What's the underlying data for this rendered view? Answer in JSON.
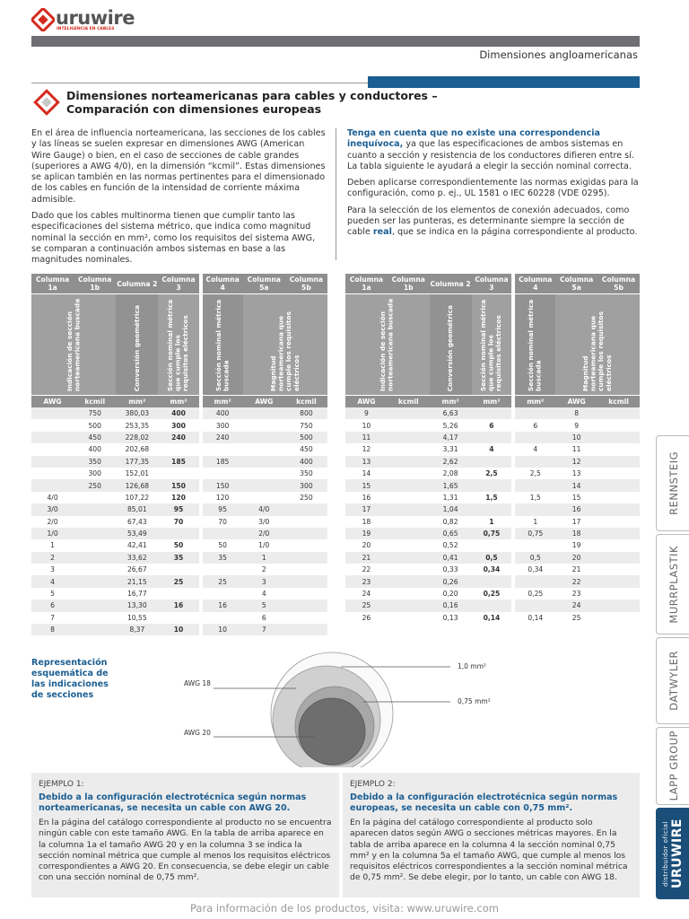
{
  "header": {
    "logo": "uruwire",
    "tagline": "INTELIGENCIA EN CABLES",
    "section": "Dimensiones angloamericanas"
  },
  "title": [
    "Dimensiones norteamericanas para cables y conductores –",
    "Comparación con dimensiones europeas"
  ],
  "intro": {
    "left": [
      "En el área de influencia norteamericana, las secciones de los cables y las líneas se suelen expresar en dimensiones AWG (American Wire Gauge) o bien, en el caso de secciones de cable grandes (superiores a AWG 4/0), en la dimensión “kcmil”. Estas dimensiones se aplican también en las normas pertinentes para el dimensionado de los cables en función de la intensidad de corriente máxima admisible.",
      "Dado que los cables multinorma tienen que cumplir tanto las especificaciones del sistema métrico, que indica como magnitud nominal la sección en mm², como los requisitos del sistema AWG, se comparan a continuación ambos sistemas en base a las magnitudes nominales."
    ],
    "right": {
      "p1_lead": "Tenga en cuenta que no existe una correspondencia inequívoca,",
      "p1_text": "ya que las especificaciones de ambos sistemas en cuanto a sección y resistencia de los conductores difieren entre sí. La tabla siguiente le ayudará a elegir la sección nominal correcta.",
      "p2": "Deben aplicarse correspondientemente las normas exigidas para la configuración, como p. ej., UL 1581 o IEC 60228 (VDE 0295).",
      "p3_text": "Para la selección de los elementos de conexión adecuados, como pueden ser las punteras, es determinante siempre la sección de cable",
      "p3_emphasis": "real",
      "p3_tail": ", que se indica en la página correspondiente al producto."
    }
  },
  "tables": [
    {
      "columns": [
        "Columna 1a",
        "Columna 1b",
        "Columna 2",
        "Columna 3",
        "Columna 4",
        "Columna 5a",
        "Columna 5b"
      ],
      "descriptions": [
        "Indicación de sección norteamericana buscada",
        "Conversión geométrica",
        "Sección nominal métrica que cumple los requisitos eléctricos",
        "Sección nominal métrica buscada",
        "Magnitud norteamericana que cumple los requisitos eléctricos"
      ],
      "units": [
        "AWG",
        "kcmil",
        "mm²",
        "mm²",
        "mm²",
        "AWG",
        "kcmil"
      ],
      "rows": [
        [
          null,
          "750",
          "380,03",
          "400",
          "400",
          null,
          "800"
        ],
        [
          null,
          "500",
          "253,35",
          "300",
          "300",
          null,
          "750"
        ],
        [
          null,
          "450",
          "228,02",
          "240",
          "240",
          null,
          "500"
        ],
        [
          null,
          "400",
          "202,68",
          null,
          null,
          null,
          "450"
        ],
        [
          null,
          "350",
          "177,35",
          "185",
          "185",
          null,
          "400"
        ],
        [
          null,
          "300",
          "152,01",
          null,
          null,
          null,
          "350"
        ],
        [
          null,
          "250",
          "126,68",
          "150",
          "150",
          null,
          "300"
        ],
        [
          "4/0",
          null,
          "107,22",
          "120",
          "120",
          null,
          "250"
        ],
        [
          "3/0",
          null,
          "85,01",
          "95",
          "95",
          "4/0",
          null
        ],
        [
          "2/0",
          null,
          "67,43",
          "70",
          "70",
          "3/0",
          null
        ],
        [
          "1/0",
          null,
          "53,49",
          null,
          null,
          "2/0",
          null
        ],
        [
          "1",
          null,
          "42,41",
          "50",
          "50",
          "1/0",
          null
        ],
        [
          "2",
          null,
          "33,62",
          "35",
          "35",
          "1",
          null
        ],
        [
          "3",
          null,
          "26,67",
          null,
          null,
          "2",
          null
        ],
        [
          "4",
          null,
          "21,15",
          "25",
          "25",
          "3",
          null
        ],
        [
          "5",
          null,
          "16,77",
          null,
          null,
          "4",
          null
        ],
        [
          "6",
          null,
          "13,30",
          "16",
          "16",
          "5",
          null
        ],
        [
          "7",
          null,
          "10,55",
          null,
          null,
          "6",
          null
        ],
        [
          "8",
          null,
          "8,37",
          "10",
          "10",
          "7",
          null
        ]
      ]
    },
    {
      "columns": [
        "Columna 1a",
        "Columna 1b",
        "Columna 2",
        "Columna 3",
        "Columna 4",
        "Columna 5a",
        "Columna 5b"
      ],
      "descriptions": [
        "Indicación de sección norteamericana buscada",
        "Conversión geométrica",
        "Sección nominal métrica que cumple los requisitos eléctricos",
        "Sección nominal métrica buscada",
        "Magnitud norteamericana que cumple los requisitos eléctricos"
      ],
      "units": [
        "AWG",
        "kcmil",
        "mm²",
        "mm²",
        "mm²",
        "AWG",
        "kcmil"
      ],
      "rows": [
        [
          "9",
          null,
          "6,63",
          null,
          null,
          "8",
          null
        ],
        [
          "10",
          null,
          "5,26",
          "6",
          "6",
          "9",
          null
        ],
        [
          "11",
          null,
          "4,17",
          null,
          null,
          "10",
          null
        ],
        [
          "12",
          null,
          "3,31",
          "4",
          "4",
          "11",
          null
        ],
        [
          "13",
          null,
          "2,62",
          null,
          null,
          "12",
          null
        ],
        [
          "14",
          null,
          "2,08",
          "2,5",
          "2,5",
          "13",
          null
        ],
        [
          "15",
          null,
          "1,65",
          null,
          null,
          "14",
          null
        ],
        [
          "16",
          null,
          "1,31",
          "1,5",
          "1,5",
          "15",
          null
        ],
        [
          "17",
          null,
          "1,04",
          null,
          null,
          "16",
          null
        ],
        [
          "18",
          null,
          "0,82",
          "1",
          "1",
          "17",
          null
        ],
        [
          "19",
          null,
          "0,65",
          "0,75",
          "0,75",
          "18",
          null
        ],
        [
          "20",
          null,
          "0,52",
          null,
          null,
          "19",
          null
        ],
        [
          "21",
          null,
          "0,41",
          "0,5",
          "0,5",
          "20",
          null
        ],
        [
          "22",
          null,
          "0,33",
          "0,34",
          "0,34",
          "21",
          null
        ],
        [
          "23",
          null,
          "0,26",
          null,
          null,
          "22",
          null
        ],
        [
          "24",
          null,
          "0,20",
          "0,25",
          "0,25",
          "23",
          null
        ],
        [
          "25",
          null,
          "0,16",
          null,
          null,
          "24",
          null
        ],
        [
          "26",
          null,
          "0,13",
          "0,14",
          "0,14",
          "25",
          null
        ]
      ]
    }
  ],
  "diagram": {
    "caption": "Representación esquemática de las indicaciones de secciones",
    "labels": [
      "1,0 mm²",
      "0,75 mm²",
      "AWG 18",
      "AWG 20"
    ]
  },
  "examples": [
    {
      "label": "EJEMPLO 1:",
      "lead": "Debido a la configuración electrotécnica según normas norteamericanas, se necesita un cable con AWG 20.",
      "body": "En la página del catálogo correspondiente al producto no se encuentra ningún cable con este tamaño AWG. En la tabla de arriba aparece en la columna 1a el tamaño AWG 20 y en la columna 3 se indica la sección nominal métrica que cumple al menos los requisitos eléctricos correspondientes a AWG 20. En consecuencia, se debe elegir un cable con una sección nominal de 0,75 mm²."
    },
    {
      "label": "EJEMPLO 2:",
      "lead": "Debido a la configuración electrotécnica según normas europeas, se necesita un cable con 0,75 mm².",
      "body": "En la página del catálogo correspondiente al producto solo aparecen datos según AWG o secciones métricas mayores. En la tabla de arriba aparece en la columna 4 la sección nominal 0,75 mm² y en la columna 5a el tamaño AWG, que cumple al menos los requisitos eléctricos correspondientes a la sección nominal métrica de 0,75 mm². Se debe elegir, por lo tanto, un cable con AWG 18."
    }
  ],
  "side_tabs": [
    "RENNSTEIG",
    "MURRPLASTIK",
    "DATWYLER",
    "LAPP GROUP"
  ],
  "official": {
    "name": "URUWIRE",
    "note": "distribuidor oficial"
  },
  "footer": "Para información de los productos, visita: www.uruwire.com"
}
